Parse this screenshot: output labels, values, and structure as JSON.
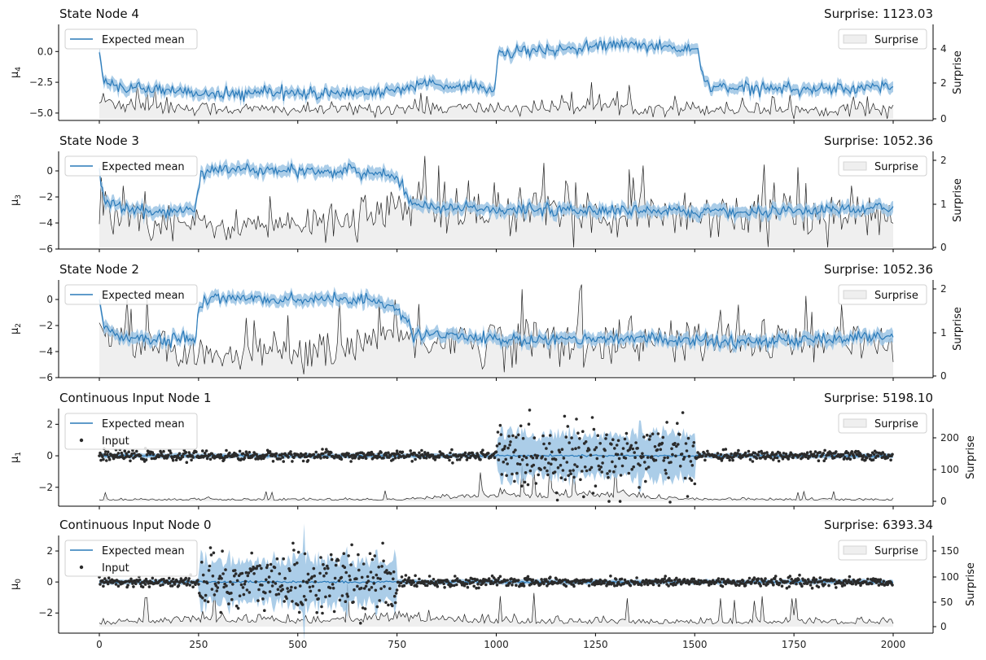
{
  "chart_data": [
    {
      "type": "line",
      "title": "State Node 4",
      "surprise_text": "Surprise: 1123.03",
      "ylabel": "μ",
      "ylabel_sub": "4",
      "y2label": "Surprise",
      "xlim": [
        0,
        2000
      ],
      "ylim": [
        -5.6,
        2.2
      ],
      "y2lim": [
        -0.2,
        5.6
      ],
      "yticks": [
        "0.0",
        "-2.5",
        "-5.0"
      ],
      "y2ticks": [
        "0",
        "2",
        "4"
      ],
      "legend_left": [
        "Expected mean"
      ],
      "legend_right": [
        "Surprise"
      ],
      "series": [
        {
          "name": "Expected mean",
          "x": [
            0,
            10,
            20,
            100,
            180,
            260,
            340,
            420,
            500,
            580,
            660,
            740,
            820,
            900,
            980,
            998,
            1002,
            1010,
            1100,
            1200,
            1300,
            1400,
            1480,
            1510,
            1525,
            1600,
            1700,
            1800,
            1900,
            2000
          ],
          "values": [
            0.0,
            -2.3,
            -2.8,
            -3.0,
            -3.2,
            -3.4,
            -3.5,
            -3.3,
            -3.4,
            -3.3,
            -3.4,
            -3.2,
            -2.6,
            -2.8,
            -3.0,
            -3.3,
            -0.4,
            -0.1,
            0.0,
            0.2,
            0.6,
            0.4,
            0.2,
            0.1,
            -2.8,
            -2.9,
            -3.0,
            -3.0,
            -3.0,
            -2.8
          ]
        },
        {
          "name": "Surprise",
          "x": [
            0,
            250,
            500,
            750,
            1000,
            1250,
            1500,
            1750,
            2000
          ],
          "values": [
            1.0,
            0.6,
            0.5,
            0.6,
            0.6,
            0.7,
            0.6,
            0.5,
            0.6
          ]
        }
      ]
    },
    {
      "type": "line",
      "title": "State Node 3",
      "surprise_text": "Surprise: 1052.36",
      "ylabel": "μ",
      "ylabel_sub": "3",
      "y2label": "Surprise",
      "xlim": [
        0,
        2000
      ],
      "ylim": [
        -6,
        1.5
      ],
      "y2lim": [
        0,
        2.1
      ],
      "yticks": [
        "0",
        "-2",
        "-4",
        "-6"
      ],
      "y2ticks": [
        "0",
        "1",
        "2"
      ],
      "legend_left": [
        "Expected mean"
      ],
      "legend_right": [
        "Surprise"
      ],
      "series": [
        {
          "name": "Expected mean",
          "x": [
            0,
            10,
            50,
            150,
            240,
            255,
            300,
            400,
            500,
            600,
            700,
            750,
            790,
            850,
            1000,
            1200,
            1400,
            1600,
            1800,
            2000
          ],
          "values": [
            0.0,
            -2.2,
            -2.8,
            -3.2,
            -3.0,
            -0.2,
            0.2,
            0.0,
            0.0,
            0.0,
            -0.2,
            -0.6,
            -2.7,
            -2.8,
            -3.0,
            -3.0,
            -3.0,
            -3.2,
            -3.1,
            -2.8
          ]
        },
        {
          "name": "Surprise",
          "x": [
            0,
            250,
            500,
            750,
            1000,
            1250,
            1500,
            1750,
            2000
          ],
          "values": [
            1.0,
            0.5,
            0.5,
            0.9,
            0.8,
            0.8,
            0.8,
            0.8,
            0.7
          ]
        }
      ]
    },
    {
      "type": "line",
      "title": "State Node 2",
      "surprise_text": "Surprise: 1052.36",
      "ylabel": "μ",
      "ylabel_sub": "2",
      "y2label": "Surprise",
      "xlim": [
        0,
        2000
      ],
      "ylim": [
        -6,
        1.5
      ],
      "y2lim": [
        0,
        2.1
      ],
      "yticks": [
        "0",
        "-2",
        "-4",
        "-6"
      ],
      "y2ticks": [
        "0",
        "1",
        "2"
      ],
      "legend_left": [
        "Expected mean"
      ],
      "legend_right": [
        "Surprise"
      ],
      "series": [
        {
          "name": "Expected mean",
          "x": [
            0,
            10,
            50,
            150,
            240,
            255,
            300,
            400,
            500,
            600,
            700,
            750,
            790,
            850,
            1000,
            1200,
            1400,
            1600,
            1800,
            2000
          ],
          "values": [
            0.0,
            -2.2,
            -2.8,
            -3.2,
            -3.0,
            -0.2,
            0.2,
            0.0,
            0.0,
            0.0,
            -0.2,
            -0.6,
            -2.7,
            -2.8,
            -3.0,
            -3.0,
            -3.0,
            -3.2,
            -3.1,
            -2.8
          ]
        },
        {
          "name": "Surprise",
          "x": [
            0,
            250,
            500,
            750,
            1000,
            1250,
            1500,
            1750,
            2000
          ],
          "values": [
            1.0,
            0.5,
            0.5,
            0.9,
            0.8,
            0.8,
            0.8,
            0.8,
            0.7
          ]
        }
      ]
    },
    {
      "type": "scatter",
      "title": "Continuous Input Node 1",
      "surprise_text": "Surprise: 5198.10",
      "ylabel": "μ",
      "ylabel_sub": "1",
      "y2label": "Surprise",
      "xlim": [
        0,
        2000
      ],
      "ylim": [
        -3.2,
        3.0
      ],
      "y2lim": [
        -10,
        290
      ],
      "yticks": [
        "2",
        "0",
        "-2"
      ],
      "y2ticks": [
        "0",
        "100",
        "200"
      ],
      "legend_left": [
        "Expected mean",
        "Input"
      ],
      "legend_right": [
        "Surprise"
      ],
      "input_spread": [
        {
          "x_from": 0,
          "x_to": 1000,
          "sd": 0.15
        },
        {
          "x_from": 1000,
          "x_to": 1500,
          "sd": 1.05
        },
        {
          "x_from": 1500,
          "x_to": 2000,
          "sd": 0.15
        }
      ],
      "series": [
        {
          "name": "Expected mean",
          "x": [
            0,
            1000,
            1500,
            2000
          ],
          "values": [
            0.0,
            0.0,
            0.0,
            0.0
          ]
        },
        {
          "name": "Surprise",
          "x": [
            0,
            250,
            500,
            750,
            1000,
            1250,
            1500,
            1750,
            2000
          ],
          "values": [
            3,
            3,
            3,
            3,
            10,
            12,
            4,
            3,
            3
          ]
        }
      ]
    },
    {
      "type": "scatter",
      "title": "Continuous Input Node 0",
      "surprise_text": "Surprise: 6393.34",
      "ylabel": "μ",
      "ylabel_sub": "0",
      "y2label": "Surprise",
      "xlim": [
        0,
        2000
      ],
      "ylim": [
        -3.3,
        3.0
      ],
      "y2lim": [
        -8,
        178
      ],
      "yticks": [
        "2",
        "0",
        "-2"
      ],
      "y2ticks": [
        "0",
        "50",
        "100",
        "150"
      ],
      "legend_left": [
        "Expected mean",
        "Input"
      ],
      "legend_right": [
        "Surprise"
      ],
      "input_spread": [
        {
          "x_from": 0,
          "x_to": 250,
          "sd": 0.15
        },
        {
          "x_from": 250,
          "x_to": 750,
          "sd": 1.0
        },
        {
          "x_from": 750,
          "x_to": 2000,
          "sd": 0.15
        }
      ],
      "series": [
        {
          "name": "Expected mean",
          "x": [
            0,
            250,
            750,
            2000
          ],
          "values": [
            0.0,
            0.0,
            0.0,
            0.0
          ]
        },
        {
          "name": "Surprise",
          "x": [
            0,
            250,
            500,
            750,
            1000,
            1250,
            1500,
            1750,
            2000
          ],
          "values": [
            4,
            8,
            6,
            10,
            6,
            6,
            5,
            6,
            5
          ]
        }
      ]
    }
  ],
  "x_ticks": [
    "0",
    "250",
    "500",
    "750",
    "1000",
    "1250",
    "1500",
    "1750",
    "2000"
  ],
  "x_tick_values": [
    0,
    250,
    500,
    750,
    1000,
    1250,
    1500,
    1750,
    2000
  ],
  "colors": {
    "mean": "#2a7ab9",
    "band": "#9cc4e4",
    "surprise_fill": "#efefef",
    "surprise_line": "#222222",
    "input": "#2b2b2b"
  }
}
